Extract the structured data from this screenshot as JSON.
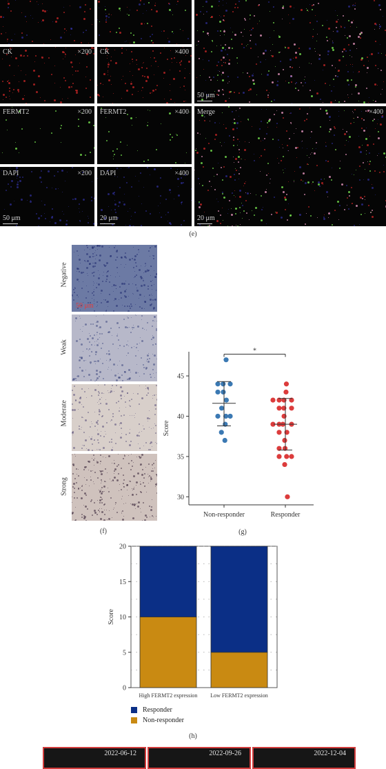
{
  "fluorescence": {
    "panels": [
      {
        "key": "top_left",
        "label": "",
        "mag": "",
        "scale": ""
      },
      {
        "key": "top_mid",
        "label": "",
        "mag": "",
        "scale": ""
      },
      {
        "key": "ck_200",
        "label": "CK",
        "mag": "×200",
        "scale": ""
      },
      {
        "key": "ck_400",
        "label": "CK",
        "mag": "×400",
        "scale": ""
      },
      {
        "key": "fermt2_200",
        "label": "FERMT2",
        "mag": "×200",
        "scale": ""
      },
      {
        "key": "fermt2_400",
        "label": "FERMT2",
        "mag": "×400",
        "scale": ""
      },
      {
        "key": "dapi_200",
        "label": "DAPI",
        "mag": "×200",
        "scale": "50 μm"
      },
      {
        "key": "dapi_400",
        "label": "DAPI",
        "mag": "×400",
        "scale": "20 μm"
      },
      {
        "key": "merge_top",
        "label": "",
        "mag": "",
        "scale": "50 μm"
      },
      {
        "key": "merge_400",
        "label": "Merge",
        "mag": "×400",
        "scale": "20 μm"
      }
    ],
    "caption": "(e)"
  },
  "ihc": {
    "labels": [
      "Negative",
      "Weak",
      "Moderate",
      "Strong"
    ],
    "scale": "50 μm",
    "caption": "(f)"
  },
  "colors": {
    "responder_navy": "#0b2f86",
    "nonresponder_gold": "#c98a12",
    "scatter_blue": "#3b79b3",
    "scatter_red": "#dc3c3c",
    "mri_border": "#d23c3c"
  },
  "chart_data": [
    {
      "type": "scatter",
      "caption": "(g)",
      "title": "",
      "xlabel": "",
      "ylabel": "Score",
      "categories": [
        "Non-responder",
        "Responder"
      ],
      "ylim": [
        29,
        48
      ],
      "yticks": [
        30,
        35,
        40,
        45
      ],
      "significance": "*",
      "series": [
        {
          "category": "Non-responder",
          "values": [
            47,
            44,
            44,
            44,
            43,
            43,
            42,
            41,
            40,
            40,
            40,
            39,
            38,
            37
          ],
          "mean": 41.6,
          "sd_low": 38.8,
          "sd_high": 44.3
        },
        {
          "category": "Responder",
          "values": [
            44,
            43,
            42,
            42,
            42,
            42,
            41,
            41,
            41,
            40,
            39,
            39,
            39,
            39,
            38,
            38,
            37,
            36,
            36,
            35,
            35,
            35,
            34,
            30
          ],
          "mean": 39.0,
          "sd_low": 35.8,
          "sd_high": 42.2
        }
      ]
    },
    {
      "type": "bar",
      "caption": "(h)",
      "title": "",
      "xlabel": "",
      "ylabel": "Score",
      "categories": [
        "High FERMT2 expression",
        "Low FERMT2 expression"
      ],
      "ylim": [
        0,
        20
      ],
      "yticks": [
        0,
        5,
        10,
        15,
        20
      ],
      "stacked": true,
      "series": [
        {
          "name": "Non-responder",
          "values": [
            10,
            5
          ]
        },
        {
          "name": "Responder",
          "values": [
            10,
            15
          ]
        }
      ],
      "legend": [
        "Responder",
        "Non-responder"
      ],
      "legend_position": "bottom-left"
    }
  ],
  "mri": {
    "dates": [
      "2022-06-12",
      "2022-09-26",
      "2022-12-04"
    ]
  }
}
